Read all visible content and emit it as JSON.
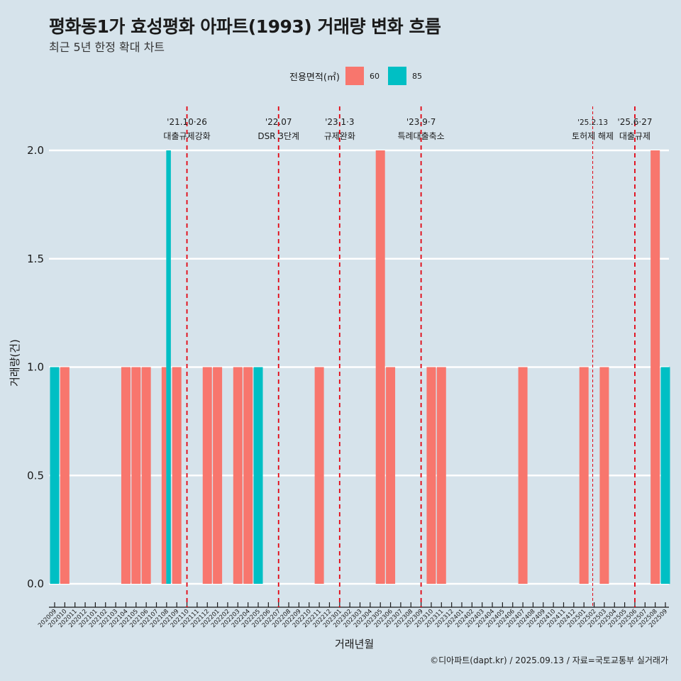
{
  "title": "평화동1가 효성평화 아파트(1993) 거래량 변화 흐름",
  "subtitle": "최근 5년 한정 확대 차트",
  "footer": "©디아파트(dapt.kr) / 2025.09.13 / 자료=국토교통부 실거래가",
  "colors": {
    "background": "#d6e3eb",
    "s60": "#f8766d",
    "s85": "#00bfc4",
    "event_line": "#e3000f",
    "grid": "#ffffff"
  },
  "chart_data": {
    "type": "bar",
    "title": "평화동1가 효성평화 아파트(1993) 거래량 변화 흐름",
    "subtitle": "최근 5년 한정 확대 차트",
    "xlabel": "거래년월",
    "ylabel": "거래량(건)",
    "ylim": [
      -0.1,
      2.2
    ],
    "yticks": [
      "0.0",
      "0.5",
      "1.0",
      "1.5",
      "2.0"
    ],
    "grid": true,
    "legend": {
      "title": "전용면적(㎡)",
      "position": "top",
      "entries": [
        "60",
        "85"
      ]
    },
    "categories": [
      "202009",
      "202010",
      "202011",
      "202012",
      "202101",
      "202102",
      "202103",
      "202104",
      "202105",
      "202106",
      "202107",
      "202108",
      "202109",
      "202110",
      "202111",
      "202112",
      "202201",
      "202202",
      "202203",
      "202204",
      "202205",
      "202206",
      "202207",
      "202208",
      "202209",
      "202210",
      "202211",
      "202212",
      "202301",
      "202302",
      "202303",
      "202304",
      "202305",
      "202306",
      "202307",
      "202308",
      "202309",
      "202310",
      "202311",
      "202312",
      "202401",
      "202402",
      "202403",
      "202404",
      "202405",
      "202406",
      "202407",
      "202408",
      "202409",
      "202410",
      "202411",
      "202412",
      "202501",
      "202502",
      "202503",
      "202504",
      "202505",
      "202506",
      "202507",
      "202508",
      "202509"
    ],
    "series": [
      {
        "name": "60",
        "values": [
          0,
          1,
          0,
          0,
          0,
          0,
          0,
          1,
          1,
          1,
          0,
          1,
          1,
          0,
          0,
          1,
          1,
          0,
          1,
          1,
          0,
          0,
          0,
          0,
          0,
          0,
          1,
          0,
          0,
          0,
          0,
          0,
          2,
          1,
          0,
          0,
          0,
          1,
          1,
          0,
          0,
          0,
          0,
          0,
          0,
          0,
          1,
          0,
          0,
          0,
          0,
          0,
          1,
          0,
          1,
          0,
          0,
          0,
          0,
          2,
          0
        ]
      },
      {
        "name": "85",
        "values": [
          1,
          0,
          0,
          0,
          0,
          0,
          0,
          0,
          0,
          0,
          0,
          2,
          0,
          0,
          0,
          0,
          0,
          0,
          0,
          0,
          1,
          0,
          0,
          0,
          0,
          0,
          0,
          0,
          0,
          0,
          0,
          0,
          0,
          0,
          0,
          0,
          0,
          0,
          0,
          0,
          0,
          0,
          0,
          0,
          0,
          0,
          0,
          0,
          0,
          0,
          0,
          0,
          0,
          0,
          0,
          0,
          0,
          0,
          0,
          0,
          1
        ]
      }
    ],
    "events": [
      {
        "month": "202110",
        "date": "'21.10·26",
        "label": "대출규제강화",
        "style": "thick"
      },
      {
        "month": "202207",
        "date": "'22.07",
        "label": "DSR 3단계",
        "style": "thick"
      },
      {
        "month": "202301",
        "date": "'23.1·3",
        "label": "규제완화",
        "style": "thick"
      },
      {
        "month": "202309",
        "date": "'23.9·7",
        "label": "특례대출축소",
        "style": "thick"
      },
      {
        "month": "202502",
        "date": "'25.2.13",
        "label": "토허제 해제",
        "style": "thin"
      },
      {
        "month": "202506",
        "date": "'25.6·27",
        "label": "대출규제",
        "style": "thick"
      }
    ]
  }
}
